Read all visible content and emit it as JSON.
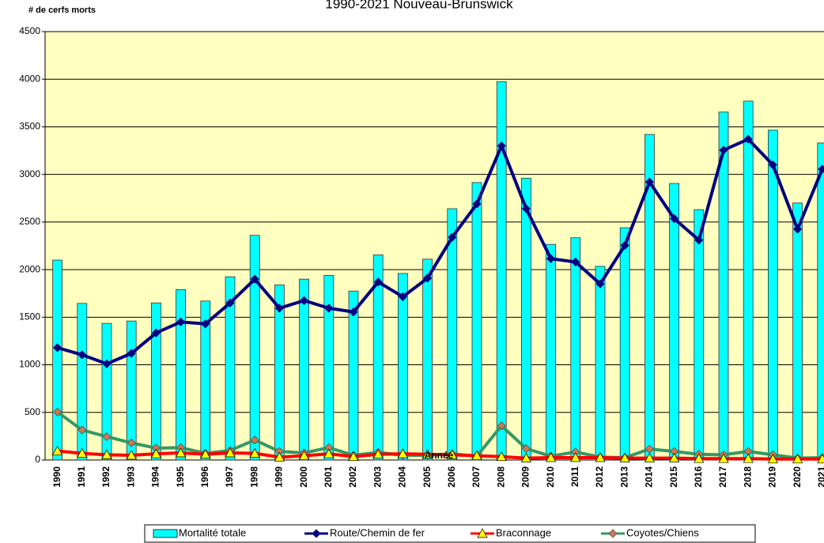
{
  "chart_data": {
    "type": "bar-line",
    "title": "1990-2021 Nouveau-Brunswick",
    "y_label": "# de cerfs morts",
    "x_label": "Année",
    "categories": [
      "1990",
      "1991",
      "1992",
      "1993",
      "1994",
      "1995",
      "1996",
      "1997",
      "1998",
      "1999",
      "2000",
      "2001",
      "2002",
      "2003",
      "2004",
      "2005",
      "2006",
      "2007",
      "2008",
      "2009",
      "2010",
      "2011",
      "2012",
      "2013",
      "2014",
      "2015",
      "2016",
      "2017",
      "2018",
      "2019",
      "2020",
      "2021"
    ],
    "series": [
      {
        "name": "Mortalité totale",
        "kind": "bar",
        "color": "#00ffff",
        "values": [
          2100,
          1645,
          1435,
          1460,
          1650,
          1790,
          1670,
          1925,
          2360,
          1840,
          1900,
          1940,
          1775,
          2155,
          1960,
          2110,
          2640,
          2915,
          3975,
          2960,
          2265,
          2335,
          2035,
          2440,
          3420,
          2905,
          2630,
          3655,
          3770,
          3465,
          2700,
          3330
        ]
      },
      {
        "name": "Route/Chemin de fer",
        "kind": "line",
        "color": "#000080",
        "marker": "diamond",
        "marker_color": "#000080",
        "values": [
          1180,
          1105,
          1010,
          1120,
          1335,
          1450,
          1430,
          1650,
          1900,
          1595,
          1675,
          1595,
          1555,
          1870,
          1715,
          1910,
          2340,
          2690,
          3300,
          2640,
          2115,
          2080,
          1850,
          2255,
          2920,
          2535,
          2310,
          3255,
          3370,
          3100,
          2425,
          3055
        ]
      },
      {
        "name": "Braconnage",
        "kind": "line",
        "color": "#ff0000",
        "marker": "triangle",
        "marker_color": "#ffff00",
        "values": [
          95,
          70,
          55,
          50,
          65,
          75,
          60,
          75,
          70,
          30,
          45,
          65,
          35,
          60,
          65,
          60,
          55,
          45,
          35,
          20,
          25,
          25,
          25,
          20,
          20,
          20,
          15,
          15,
          15,
          10,
          10,
          10
        ]
      },
      {
        "name": "Coyotes/Chiens",
        "kind": "line",
        "color": "#339966",
        "marker": "diamond",
        "marker_color": "#cc7a50",
        "values": [
          505,
          315,
          245,
          180,
          125,
          130,
          70,
          100,
          210,
          90,
          75,
          130,
          50,
          80,
          50,
          50,
          65,
          40,
          360,
          120,
          40,
          85,
          30,
          25,
          115,
          90,
          60,
          55,
          90,
          55,
          20,
          25
        ]
      }
    ],
    "ylim": [
      0,
      4500
    ],
    "yticks": [
      0,
      500,
      1000,
      1500,
      2000,
      2500,
      3000,
      3500,
      4000,
      4500
    ],
    "grid": true,
    "legend": "bottom"
  }
}
